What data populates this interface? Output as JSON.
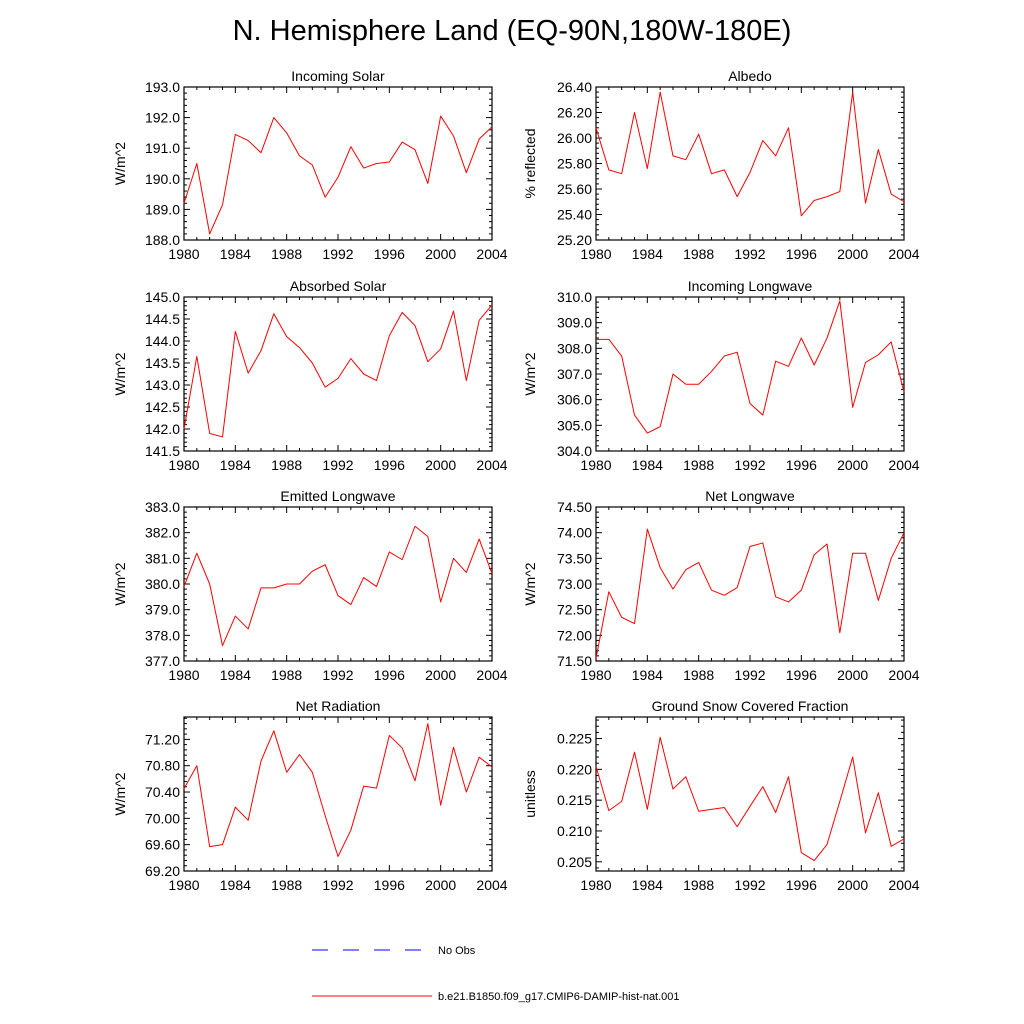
{
  "figure_title": "N. Hemisphere Land (EQ-90N,180W-180E)",
  "colors": {
    "model": "#ff0000",
    "obs": "#0000ff",
    "frame": "#000000"
  },
  "legend": {
    "obs_label": "No Obs",
    "model_label": "b.e21.B1850.f09_g17.CMIP6-DAMIP-hist-nat.001"
  },
  "chart_data": [
    {
      "type": "line",
      "title": "Incoming Solar",
      "ylabel": "W/m^2",
      "xlim": [
        1980,
        2004
      ],
      "ylim": [
        188.0,
        193.0
      ],
      "xticks": [
        "1980",
        "1984",
        "1988",
        "1992",
        "1996",
        "2000",
        "2004"
      ],
      "yticks": [
        "188.0",
        "189.0",
        "190.0",
        "191.0",
        "192.0",
        "193.0"
      ],
      "x": [
        1980,
        1981,
        1982,
        1983,
        1984,
        1985,
        1986,
        1987,
        1988,
        1989,
        1990,
        1991,
        1992,
        1993,
        1994,
        1995,
        1996,
        1997,
        1998,
        1999,
        2000,
        2001,
        2002,
        2003,
        2004
      ],
      "series": [
        {
          "name": "b.e21.B1850.f09_g17.CMIP6-DAMIP-hist-nat.001",
          "values": [
            189.2,
            190.5,
            188.2,
            189.15,
            191.45,
            191.25,
            190.85,
            192.0,
            191.5,
            190.75,
            190.45,
            189.4,
            190.05,
            191.05,
            190.35,
            190.5,
            190.55,
            191.2,
            190.95,
            189.85,
            192.05,
            191.4,
            190.2,
            191.3,
            191.7
          ]
        }
      ]
    },
    {
      "type": "line",
      "title": "Albedo",
      "ylabel": "% reflected",
      "xlim": [
        1980,
        2004
      ],
      "ylim": [
        25.2,
        26.4
      ],
      "xticks": [
        "1980",
        "1984",
        "1988",
        "1992",
        "1996",
        "2000",
        "2004"
      ],
      "yticks": [
        "25.20",
        "25.40",
        "25.60",
        "25.80",
        "26.00",
        "26.20",
        "26.40"
      ],
      "x": [
        1980,
        1981,
        1982,
        1983,
        1984,
        1985,
        1986,
        1987,
        1988,
        1989,
        1990,
        1991,
        1992,
        1993,
        1994,
        1995,
        1996,
        1997,
        1998,
        1999,
        2000,
        2001,
        2002,
        2003,
        2004
      ],
      "series": [
        {
          "name": "b.e21.B1850.f09_g17.CMIP6-DAMIP-hist-nat.001",
          "values": [
            26.08,
            25.75,
            25.72,
            26.2,
            25.76,
            26.36,
            25.86,
            25.83,
            26.03,
            25.72,
            25.75,
            25.54,
            25.73,
            25.98,
            25.86,
            26.08,
            25.39,
            25.51,
            25.54,
            25.58,
            26.36,
            25.49,
            25.91,
            25.56,
            25.5
          ]
        }
      ]
    },
    {
      "type": "line",
      "title": "Absorbed Solar",
      "ylabel": "W/m^2",
      "xlim": [
        1980,
        2004
      ],
      "ylim": [
        141.5,
        145.0
      ],
      "xticks": [
        "1980",
        "1984",
        "1988",
        "1992",
        "1996",
        "2000",
        "2004"
      ],
      "yticks": [
        "141.5",
        "142.0",
        "142.5",
        "143.0",
        "143.5",
        "144.0",
        "144.5",
        "145.0"
      ],
      "x": [
        1980,
        1981,
        1982,
        1983,
        1984,
        1985,
        1986,
        1987,
        1988,
        1989,
        1990,
        1991,
        1992,
        1993,
        1994,
        1995,
        1996,
        1997,
        1998,
        1999,
        2000,
        2001,
        2002,
        2003,
        2004
      ],
      "series": [
        {
          "name": "b.e21.B1850.f09_g17.CMIP6-DAMIP-hist-nat.001",
          "values": [
            142.0,
            143.65,
            141.9,
            141.82,
            144.22,
            143.27,
            143.78,
            144.62,
            144.1,
            143.85,
            143.5,
            142.95,
            143.15,
            143.6,
            143.25,
            143.1,
            144.12,
            144.65,
            144.35,
            143.53,
            143.82,
            144.68,
            143.1,
            144.47,
            144.82
          ]
        }
      ]
    },
    {
      "type": "line",
      "title": "Incoming Longwave",
      "ylabel": "W/m^2",
      "xlim": [
        1980,
        2004
      ],
      "ylim": [
        304.0,
        310.0
      ],
      "xticks": [
        "1980",
        "1984",
        "1988",
        "1992",
        "1996",
        "2000",
        "2004"
      ],
      "yticks": [
        "304.0",
        "305.0",
        "306.0",
        "307.0",
        "308.0",
        "309.0",
        "310.0"
      ],
      "x": [
        1980,
        1981,
        1982,
        1983,
        1984,
        1985,
        1986,
        1987,
        1988,
        1989,
        1990,
        1991,
        1992,
        1993,
        1994,
        1995,
        1996,
        1997,
        1998,
        1999,
        2000,
        2001,
        2002,
        2003,
        2004
      ],
      "series": [
        {
          "name": "b.e21.B1850.f09_g17.CMIP6-DAMIP-hist-nat.001",
          "values": [
            308.35,
            308.35,
            307.7,
            305.4,
            304.7,
            304.95,
            307.0,
            306.6,
            306.6,
            307.1,
            307.7,
            307.85,
            305.85,
            305.4,
            307.5,
            307.3,
            308.4,
            307.35,
            308.4,
            309.85,
            305.7,
            307.45,
            307.75,
            308.25,
            306.3
          ]
        }
      ]
    },
    {
      "type": "line",
      "title": "Emitted Longwave",
      "ylabel": "W/m^2",
      "xlim": [
        1980,
        2004
      ],
      "ylim": [
        377.0,
        383.0
      ],
      "xticks": [
        "1980",
        "1984",
        "1988",
        "1992",
        "1996",
        "2000",
        "2004"
      ],
      "yticks": [
        "377.0",
        "378.0",
        "379.0",
        "380.0",
        "381.0",
        "382.0",
        "383.0"
      ],
      "x": [
        1980,
        1981,
        1982,
        1983,
        1984,
        1985,
        1986,
        1987,
        1988,
        1989,
        1990,
        1991,
        1992,
        1993,
        1994,
        1995,
        1996,
        1997,
        1998,
        1999,
        2000,
        2001,
        2002,
        2003,
        2004
      ],
      "series": [
        {
          "name": "b.e21.B1850.f09_g17.CMIP6-DAMIP-hist-nat.001",
          "values": [
            379.9,
            381.2,
            380.0,
            377.6,
            378.75,
            378.25,
            379.85,
            379.85,
            380.0,
            380.0,
            380.5,
            380.75,
            379.55,
            379.2,
            380.25,
            379.9,
            381.25,
            380.95,
            382.25,
            381.85,
            379.3,
            381.0,
            380.45,
            381.75,
            380.4
          ]
        }
      ]
    },
    {
      "type": "line",
      "title": "Net Longwave",
      "ylabel": "W/m^2",
      "xlim": [
        1980,
        2004
      ],
      "ylim": [
        71.5,
        74.5
      ],
      "xticks": [
        "1980",
        "1984",
        "1988",
        "1992",
        "1996",
        "2000",
        "2004"
      ],
      "yticks": [
        "71.50",
        "72.00",
        "72.50",
        "73.00",
        "73.50",
        "74.00",
        "74.50"
      ],
      "x": [
        1980,
        1981,
        1982,
        1983,
        1984,
        1985,
        1986,
        1987,
        1988,
        1989,
        1990,
        1991,
        1992,
        1993,
        1994,
        1995,
        1996,
        1997,
        1998,
        1999,
        2000,
        2001,
        2002,
        2003,
        2004
      ],
      "series": [
        {
          "name": "b.e21.B1850.f09_g17.CMIP6-DAMIP-hist-nat.001",
          "values": [
            71.55,
            72.85,
            72.35,
            72.23,
            74.07,
            73.32,
            72.9,
            73.28,
            73.42,
            72.88,
            72.78,
            72.93,
            73.73,
            73.8,
            72.75,
            72.65,
            72.88,
            73.57,
            73.78,
            72.05,
            73.6,
            73.6,
            72.68,
            73.5,
            74.0
          ]
        }
      ]
    },
    {
      "type": "line",
      "title": "Net Radiation",
      "ylabel": "W/m^2",
      "xlim": [
        1980,
        2004
      ],
      "ylim": [
        69.2,
        71.54
      ],
      "xticks": [
        "1980",
        "1984",
        "1988",
        "1992",
        "1996",
        "2000",
        "2004"
      ],
      "yticks": [
        "69.20",
        "69.60",
        "70.00",
        "70.40",
        "70.80",
        "71.20"
      ],
      "x": [
        1980,
        1981,
        1982,
        1983,
        1984,
        1985,
        1986,
        1987,
        1988,
        1989,
        1990,
        1991,
        1992,
        1993,
        1994,
        1995,
        1996,
        1997,
        1998,
        1999,
        2000,
        2001,
        2002,
        2003,
        2004
      ],
      "series": [
        {
          "name": "b.e21.B1850.f09_g17.CMIP6-DAMIP-hist-nat.001",
          "values": [
            70.45,
            70.8,
            69.57,
            69.6,
            70.17,
            69.97,
            70.87,
            71.33,
            70.7,
            70.97,
            70.7,
            70.04,
            69.42,
            69.82,
            70.49,
            70.46,
            71.26,
            71.07,
            70.57,
            71.44,
            70.2,
            71.08,
            70.4,
            70.93,
            70.78
          ]
        }
      ]
    },
    {
      "type": "line",
      "title": "Ground Snow Covered Fraction",
      "ylabel": "unitless",
      "xlim": [
        1980,
        2004
      ],
      "ylim": [
        0.2035,
        0.2285
      ],
      "xticks": [
        "1980",
        "1984",
        "1988",
        "1992",
        "1996",
        "2000",
        "2004"
      ],
      "yticks": [
        "0.205",
        "0.210",
        "0.215",
        "0.220",
        "0.225"
      ],
      "x": [
        1980,
        1981,
        1982,
        1983,
        1984,
        1985,
        1986,
        1987,
        1988,
        1989,
        1990,
        1991,
        1992,
        1993,
        1994,
        1995,
        1996,
        1997,
        1998,
        1999,
        2000,
        2001,
        2002,
        2003,
        2004
      ],
      "series": [
        {
          "name": "b.e21.B1850.f09_g17.CMIP6-DAMIP-hist-nat.001",
          "values": [
            0.2205,
            0.2133,
            0.2148,
            0.2228,
            0.2135,
            0.2252,
            0.2168,
            0.2188,
            0.2132,
            0.2135,
            0.2138,
            0.2107,
            0.214,
            0.2172,
            0.213,
            0.2188,
            0.2065,
            0.2052,
            0.2078,
            0.2148,
            0.222,
            0.2097,
            0.2162,
            0.2075,
            0.2087
          ]
        }
      ]
    }
  ]
}
